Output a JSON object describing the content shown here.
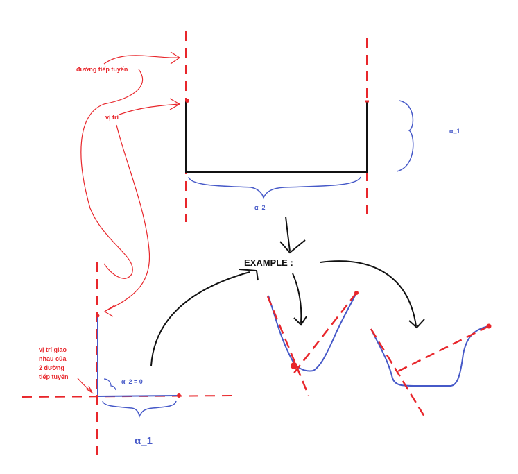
{
  "labels": {
    "tangent": "đường tiếp tuyến",
    "position": "vị trí",
    "intersection": [
      "vị trí giao",
      "nhau của",
      "2 đường",
      "tiếp tuyến"
    ],
    "alpha1_top": "α_1",
    "alpha2_top": "α_2",
    "alpha2_zero": "α_2 = 0",
    "alpha1_bottom": "α_1",
    "example": "EXAMPLE :"
  },
  "colors": {
    "red": "#e8262b",
    "blue": "#4659c8",
    "black": "#111111"
  }
}
